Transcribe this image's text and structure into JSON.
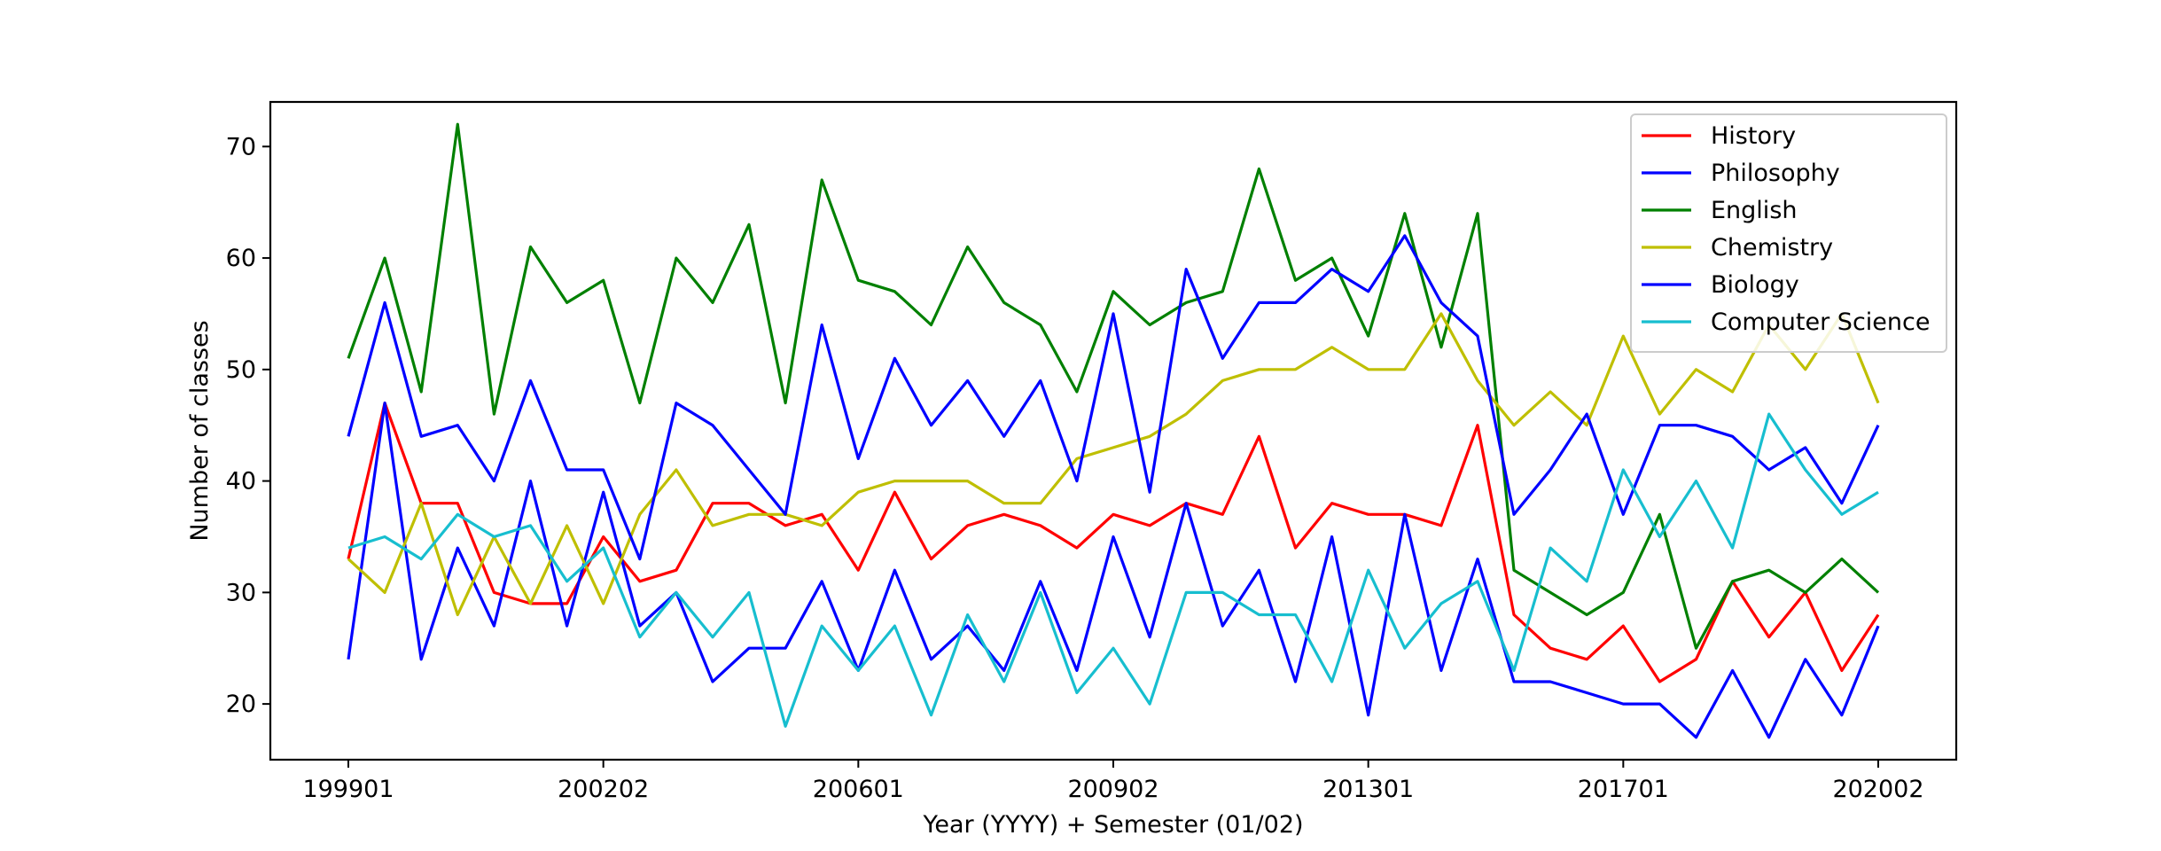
{
  "chart_data": {
    "type": "line",
    "title": "",
    "xlabel": "Year (YYYY) + Semester (01/02)",
    "ylabel": "Number of classes",
    "xticks": [
      "199901",
      "200202",
      "200601",
      "200902",
      "201301",
      "201701",
      "202002"
    ],
    "ylim": [
      15,
      74
    ],
    "yticks": [
      20,
      30,
      40,
      50,
      60,
      70
    ],
    "grid": false,
    "legend_position": "top-right",
    "series": [
      {
        "name": "History",
        "color": "#ff0000",
        "values": [
          33,
          47,
          38,
          38,
          30,
          29,
          29,
          35,
          31,
          32,
          38,
          38,
          36,
          37,
          32,
          39,
          33,
          36,
          37,
          36,
          34,
          37,
          36,
          38,
          37,
          44,
          34,
          38,
          37,
          37,
          36,
          45,
          28,
          25,
          24,
          27,
          22,
          24,
          31,
          26,
          30,
          23,
          28
        ]
      },
      {
        "name": "Philosophy",
        "color": "#0000ff",
        "values": [
          24,
          47,
          24,
          34,
          27,
          40,
          27,
          39,
          27,
          30,
          22,
          25,
          25,
          31,
          23,
          32,
          24,
          27,
          23,
          31,
          23,
          35,
          26,
          38,
          27,
          32,
          22,
          35,
          19,
          37,
          23,
          33,
          22,
          22,
          21,
          20,
          20,
          17,
          23,
          17,
          24,
          19,
          27
        ]
      },
      {
        "name": "English",
        "color": "#008000",
        "values": [
          51,
          60,
          48,
          72,
          46,
          61,
          56,
          58,
          47,
          60,
          56,
          63,
          47,
          67,
          58,
          57,
          54,
          61,
          56,
          54,
          48,
          57,
          54,
          56,
          57,
          68,
          58,
          60,
          53,
          64,
          52,
          64,
          32,
          30,
          28,
          30,
          37,
          25,
          31,
          32,
          30,
          33,
          30
        ]
      },
      {
        "name": "Chemistry",
        "color": "#bfbf00",
        "values": [
          33,
          30,
          38,
          28,
          35,
          29,
          36,
          29,
          37,
          41,
          36,
          37,
          37,
          36,
          39,
          40,
          40,
          40,
          38,
          38,
          42,
          43,
          44,
          46,
          49,
          50,
          50,
          52,
          50,
          50,
          55,
          49,
          45,
          48,
          45,
          53,
          46,
          50,
          48,
          54,
          50,
          55,
          47
        ]
      },
      {
        "name": "Biology",
        "color": "#0000ff",
        "values": [
          44,
          56,
          44,
          45,
          40,
          49,
          41,
          41,
          33,
          47,
          45,
          41,
          37,
          54,
          42,
          51,
          45,
          49,
          44,
          49,
          40,
          55,
          39,
          59,
          51,
          56,
          56,
          59,
          57,
          62,
          56,
          53,
          37,
          41,
          46,
          37,
          45,
          45,
          44,
          41,
          43,
          38,
          45
        ]
      },
      {
        "name": "Computer Science",
        "color": "#17becf",
        "values": [
          34,
          35,
          33,
          37,
          35,
          36,
          31,
          34,
          26,
          30,
          26,
          30,
          18,
          27,
          23,
          27,
          19,
          28,
          22,
          30,
          21,
          25,
          20,
          30,
          30,
          28,
          28,
          22,
          32,
          25,
          29,
          31,
          23,
          34,
          31,
          41,
          35,
          40,
          34,
          46,
          41,
          37,
          39
        ]
      }
    ]
  }
}
